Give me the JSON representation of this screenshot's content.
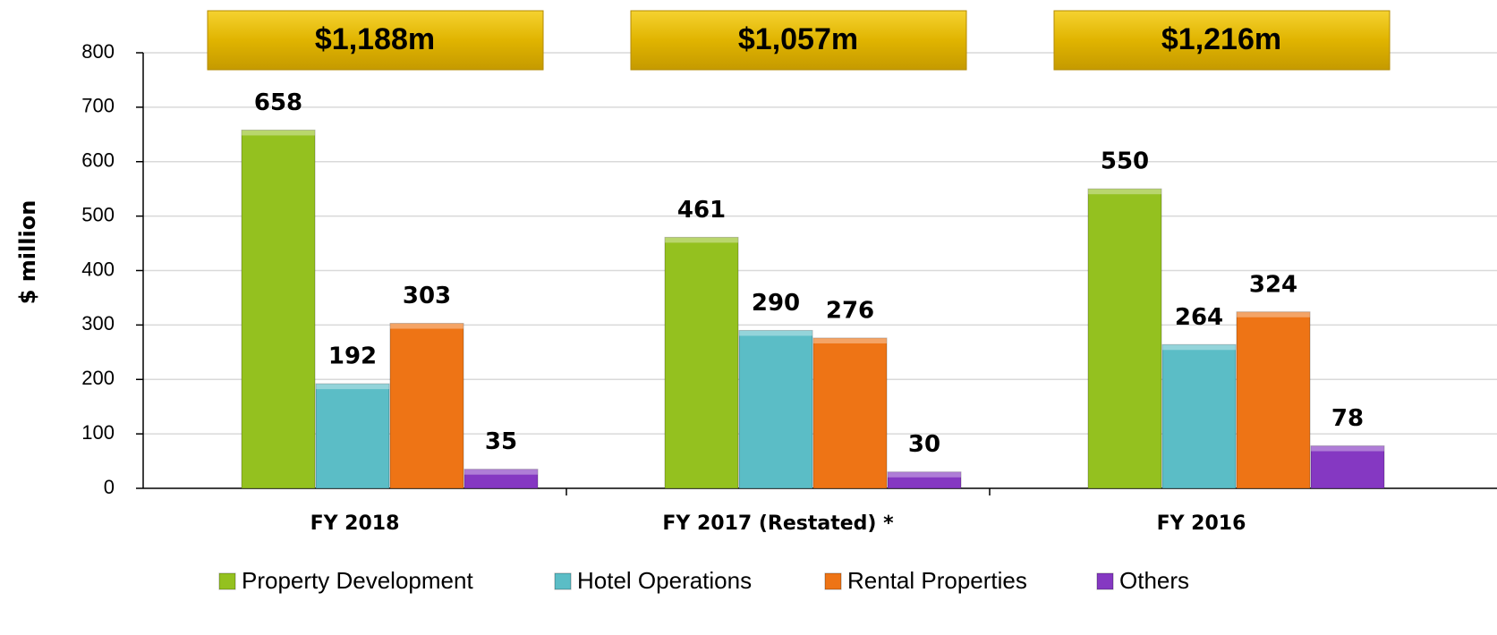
{
  "chart_data": {
    "type": "bar",
    "y_label": "$ million",
    "categories": [
      "FY 2018",
      "FY 2017 (Restated) *",
      "FY 2016"
    ],
    "annotations": [
      "$1,188m",
      "$1,057m",
      "$1,216m"
    ],
    "series": [
      {
        "name": "Property Development",
        "color": "#94c11f",
        "values": [
          658,
          461,
          550
        ]
      },
      {
        "name": "Hotel Operations",
        "color": "#5bbdc6",
        "values": [
          192,
          290,
          264
        ]
      },
      {
        "name": "Rental Properties",
        "color": "#ee7415",
        "values": [
          303,
          276,
          324
        ]
      },
      {
        "name": "Others",
        "color": "#8538c2",
        "values": [
          35,
          30,
          78
        ]
      }
    ],
    "ylim": [
      0,
      800
    ],
    "yticks": [
      0,
      100,
      200,
      300,
      400,
      500,
      600,
      700,
      800
    ],
    "grid": true,
    "legend": "bottom"
  }
}
